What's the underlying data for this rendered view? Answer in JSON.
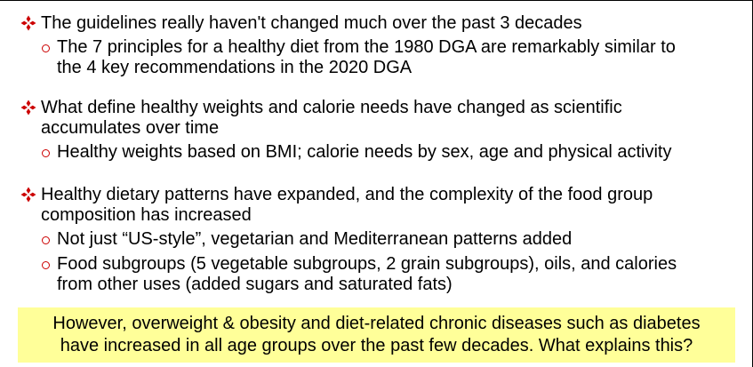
{
  "colors": {
    "bullet_red": "#cc0000",
    "callout_background": "#ffff99",
    "text": "#000000"
  },
  "icons": {
    "main_bullet": "four-petal-diamond-icon",
    "sub_bullet": "hollow-circle-icon"
  },
  "bullets": [
    {
      "text_lines": [
        "The guidelines really haven't changed much over the past 3 decades"
      ],
      "sub_bullets": [
        {
          "text_lines": [
            "The 7 principles for a healthy diet from the 1980 DGA are remarkably similar to",
            "the 4 key recommendations in the 2020 DGA"
          ]
        }
      ]
    },
    {
      "text_lines": [
        "What define healthy weights and calorie needs have changed as scientific",
        "accumulates over time"
      ],
      "sub_bullets": [
        {
          "text_lines": [
            "Healthy weights based on BMI; calorie needs by sex, age and physical activity"
          ]
        }
      ]
    },
    {
      "text_lines": [
        "Healthy dietary patterns have expanded, and the complexity of the food group",
        "composition has increased"
      ],
      "sub_bullets": [
        {
          "text_lines": [
            "Not just “US-style”, vegetarian and Mediterranean patterns added"
          ]
        },
        {
          "text_lines": [
            "Food subgroups (5 vegetable subgroups, 2 grain subgroups), oils, and calories",
            "from other uses (added sugars and saturated fats)"
          ]
        }
      ]
    }
  ],
  "callout": {
    "lines": [
      "However, overweight & obesity and diet-related chronic diseases such as diabetes",
      "have increased in all age groups over the past few decades. What explains this?"
    ]
  }
}
